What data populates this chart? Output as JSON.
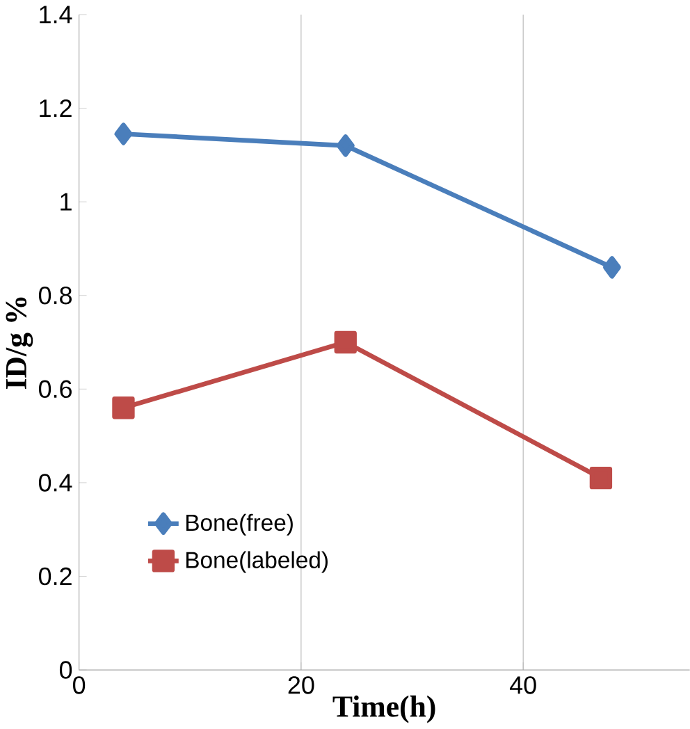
{
  "chart_data": {
    "type": "line",
    "xlabel": "Time(h)",
    "ylabel": "ID/g %",
    "xlim": [
      0,
      55
    ],
    "xticks": [
      0,
      20,
      40
    ],
    "ylim": [
      0,
      1.4
    ],
    "yticks": [
      0,
      0.2,
      0.4,
      0.6,
      0.8,
      1,
      1.2,
      1.4
    ],
    "grid": "x",
    "legend": "bottom left",
    "series": [
      {
        "name": "Bone(free)",
        "color": "#4a7ebb",
        "marker": "diamond",
        "x": [
          4,
          24,
          48
        ],
        "values": [
          1.145,
          1.12,
          0.86
        ]
      },
      {
        "name": "Bone(labeled)",
        "color": "#be4b48",
        "marker": "square",
        "x": [
          4,
          24,
          47
        ],
        "values": [
          0.56,
          0.7,
          0.41
        ]
      }
    ]
  }
}
